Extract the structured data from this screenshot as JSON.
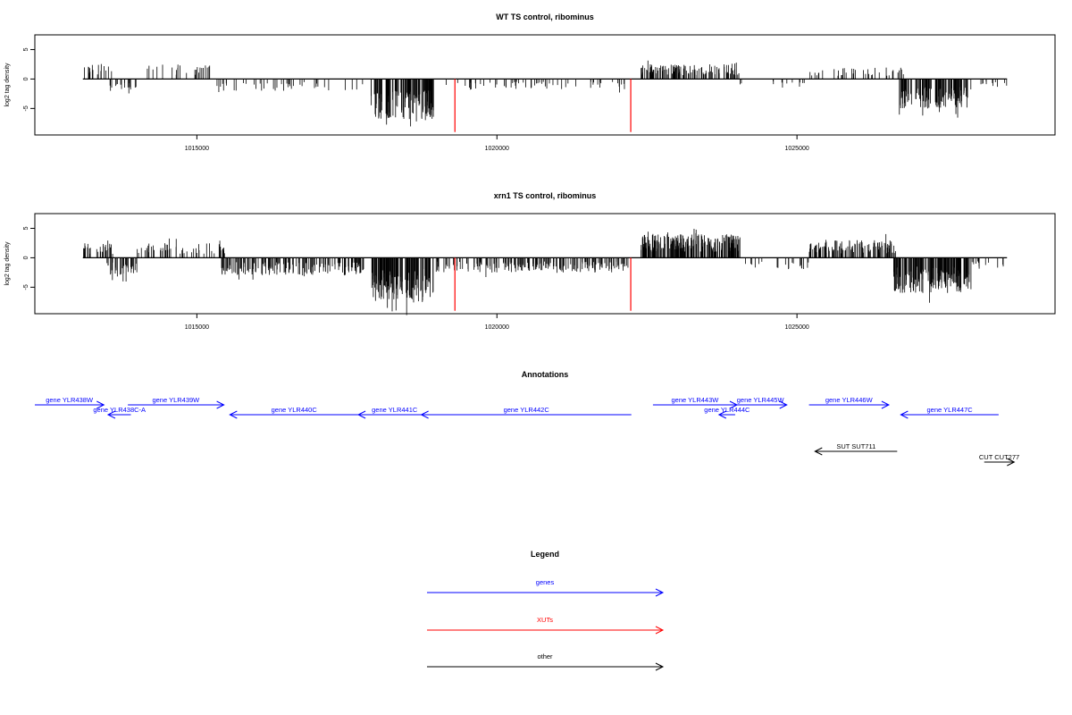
{
  "colors": {
    "gene": "#0000ff",
    "xut": "#ff0000",
    "other": "#000000",
    "signal": "#000000",
    "frame": "#000000"
  },
  "chart_data": [
    {
      "type": "bar",
      "title": "WT TS control, ribominus",
      "ylabel": "log2 tag density",
      "xlim": [
        1012300,
        1029300
      ],
      "ylim": [
        -9.5,
        7.5
      ],
      "xticks": [
        {
          "v": 1015000,
          "label": "1015000"
        },
        {
          "v": 1020000,
          "label": "1020000"
        },
        {
          "v": 1025000,
          "label": "1025000"
        }
      ],
      "yticks": [
        {
          "v": 5,
          "label": "5"
        },
        {
          "v": 0,
          "label": "0"
        },
        {
          "v": -5,
          "label": "-5"
        }
      ],
      "baseline": {
        "start": 1013100,
        "end": 1028500
      },
      "markers": [
        {
          "x": 1019300,
          "y": -9,
          "color": "#ff0000"
        },
        {
          "x": 1022230,
          "y": -9,
          "color": "#ff0000"
        }
      ],
      "segments": [
        {
          "start": 1013100,
          "end": 1013600,
          "sign": 1,
          "amp": 2.5,
          "density": 0.5,
          "fill": 0.6
        },
        {
          "start": 1013550,
          "end": 1014000,
          "sign": -1,
          "amp": 2.5,
          "density": 0.6,
          "fill": 0.5
        },
        {
          "start": 1014150,
          "end": 1015300,
          "sign": 1,
          "amp": 2.5,
          "density": 0.4,
          "fill": 0.5
        },
        {
          "start": 1015300,
          "end": 1017800,
          "sign": -1,
          "amp": 2.0,
          "density": 0.3,
          "fill": 0.5
        },
        {
          "start": 1017900,
          "end": 1018950,
          "sign": -1,
          "amp": 7.0,
          "density": 2.5,
          "fill": 0.4
        },
        {
          "start": 1018950,
          "end": 1022200,
          "sign": -1,
          "amp": 1.8,
          "density": 0.3,
          "fill": 0.5
        },
        {
          "start": 1022400,
          "end": 1023300,
          "sign": 1,
          "amp": 2.5,
          "density": 1.5,
          "fill": 0.5
        },
        {
          "start": 1023300,
          "end": 1024050,
          "sign": 1,
          "amp": 2.6,
          "density": 1.0,
          "fill": 0.5
        },
        {
          "start": 1024050,
          "end": 1025200,
          "sign": -1,
          "amp": 1.5,
          "density": 0.2,
          "fill": 0.5
        },
        {
          "start": 1025200,
          "end": 1026900,
          "sign": 1,
          "amp": 2.0,
          "density": 0.4,
          "fill": 0.5
        },
        {
          "start": 1026700,
          "end": 1027900,
          "sign": -1,
          "amp": 5.0,
          "density": 2.0,
          "fill": 0.4
        },
        {
          "start": 1027900,
          "end": 1028500,
          "sign": -1,
          "amp": 1.5,
          "density": 0.3,
          "fill": 0.5
        }
      ]
    },
    {
      "type": "bar",
      "title": "xrn1 TS control, ribominus",
      "ylabel": "log2 tag density",
      "xlim": [
        1012300,
        1029300
      ],
      "ylim": [
        -9.5,
        7.5
      ],
      "xticks": [
        {
          "v": 1015000,
          "label": "1015000"
        },
        {
          "v": 1020000,
          "label": "1020000"
        },
        {
          "v": 1025000,
          "label": "1025000"
        }
      ],
      "yticks": [
        {
          "v": 5,
          "label": "5"
        },
        {
          "v": 0,
          "label": "0"
        },
        {
          "v": -5,
          "label": "-5"
        }
      ],
      "baseline": {
        "start": 1013100,
        "end": 1028500
      },
      "markers": [
        {
          "x": 1019300,
          "y": -9,
          "color": "#ff0000"
        },
        {
          "x": 1022230,
          "y": -9,
          "color": "#ff0000"
        }
      ],
      "segments": [
        {
          "start": 1013100,
          "end": 1013600,
          "sign": 1,
          "amp": 2.5,
          "density": 1.0,
          "fill": 0.6
        },
        {
          "start": 1013500,
          "end": 1014000,
          "sign": -1,
          "amp": 3.0,
          "density": 1.0,
          "fill": 0.6
        },
        {
          "start": 1014000,
          "end": 1015500,
          "sign": 1,
          "amp": 2.5,
          "density": 0.6,
          "fill": 0.5
        },
        {
          "start": 1015400,
          "end": 1017800,
          "sign": -1,
          "amp": 3.0,
          "density": 1.2,
          "fill": 0.5
        },
        {
          "start": 1017900,
          "end": 1018950,
          "sign": -1,
          "amp": 7.5,
          "density": 2.5,
          "fill": 0.4
        },
        {
          "start": 1018950,
          "end": 1022200,
          "sign": -1,
          "amp": 2.5,
          "density": 1.0,
          "fill": 0.5
        },
        {
          "start": 1022400,
          "end": 1024050,
          "sign": 1,
          "amp": 4.0,
          "density": 2.5,
          "fill": 0.5
        },
        {
          "start": 1024050,
          "end": 1025200,
          "sign": -1,
          "amp": 2.0,
          "density": 0.3,
          "fill": 0.5
        },
        {
          "start": 1025200,
          "end": 1026700,
          "sign": 1,
          "amp": 3.0,
          "density": 1.5,
          "fill": 0.5
        },
        {
          "start": 1026600,
          "end": 1027900,
          "sign": -1,
          "amp": 6.0,
          "density": 2.5,
          "fill": 0.4
        },
        {
          "start": 1027900,
          "end": 1028500,
          "sign": -1,
          "amp": 2.0,
          "density": 0.4,
          "fill": 0.5
        }
      ]
    }
  ],
  "annotations": {
    "title": "Annotations",
    "xlim": [
      1012300,
      1029300
    ],
    "features": [
      {
        "label": "gene YLR438W",
        "type": "gene",
        "start": 1012300,
        "end": 1013450,
        "strand": "+",
        "track": 0
      },
      {
        "label": "gene YLR438C-A",
        "type": "gene",
        "start": 1013520,
        "end": 1013900,
        "strand": "-",
        "track": 1
      },
      {
        "label": "gene YLR439W",
        "type": "gene",
        "start": 1013850,
        "end": 1015450,
        "strand": "+",
        "track": 0
      },
      {
        "label": "gene YLR440C",
        "type": "gene",
        "start": 1015550,
        "end": 1017690,
        "strand": "-",
        "track": 1
      },
      {
        "label": "gene YLR441C",
        "type": "gene",
        "start": 1017690,
        "end": 1018900,
        "strand": "-",
        "track": 1
      },
      {
        "label": "gene YLR442C",
        "type": "gene",
        "start": 1018740,
        "end": 1022240,
        "strand": "-",
        "track": 1
      },
      {
        "label": "gene YLR443W",
        "type": "gene",
        "start": 1022600,
        "end": 1024000,
        "strand": "+",
        "track": 0
      },
      {
        "label": "gene YLR444C",
        "type": "gene",
        "start": 1023700,
        "end": 1023970,
        "strand": "-",
        "track": 1
      },
      {
        "label": "gene YLR445W",
        "type": "gene",
        "start": 1023950,
        "end": 1024830,
        "strand": "+",
        "track": 0
      },
      {
        "label": "gene YLR446W",
        "type": "gene",
        "start": 1025200,
        "end": 1026530,
        "strand": "+",
        "track": 0
      },
      {
        "label": "gene YLR447C",
        "type": "gene",
        "start": 1026730,
        "end": 1028360,
        "strand": "-",
        "track": 1
      },
      {
        "label": "SUT SUT711",
        "type": "other",
        "start": 1025300,
        "end": 1026670,
        "strand": "-",
        "track": 4
      },
      {
        "label": "CUT CUT277",
        "type": "other",
        "start": 1028120,
        "end": 1028620,
        "strand": "+",
        "track": 5
      }
    ]
  },
  "legend": {
    "title": "Legend",
    "items": [
      {
        "label": "genes",
        "type": "gene"
      },
      {
        "label": "XUTs",
        "type": "xut"
      },
      {
        "label": "other",
        "type": "other"
      }
    ]
  }
}
